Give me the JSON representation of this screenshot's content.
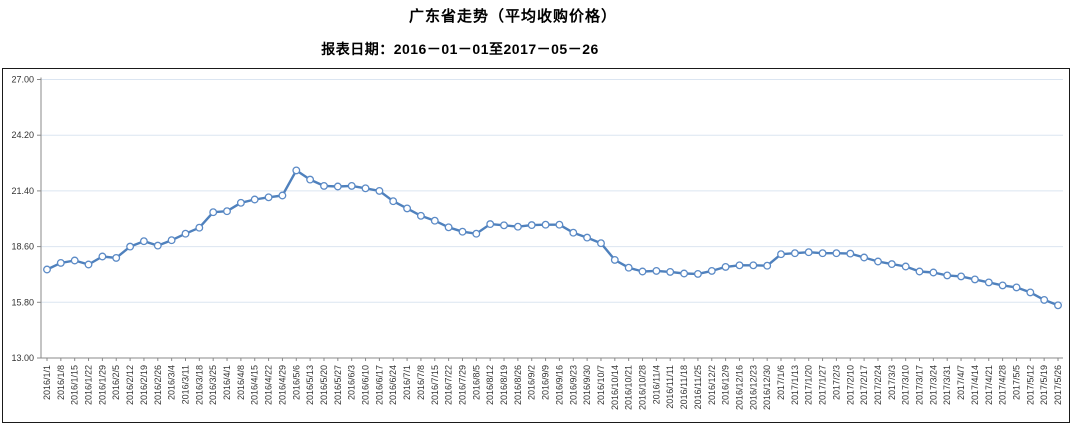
{
  "chart_data": {
    "type": "line",
    "title": "广东省走势（平均收购价格）",
    "subtitle": "报表日期：2016－01－01至2017－05－26",
    "legend": "none",
    "grid": "horizontal",
    "ylim": [
      13.0,
      27.0
    ],
    "yticks": [
      "13.00",
      "15.80",
      "18.60",
      "21.40",
      "24.20",
      "27.00"
    ],
    "xlabel": "",
    "ylabel": "",
    "categories": [
      "2016/1/1",
      "2016/1/8",
      "2016/1/15",
      "2016/1/22",
      "2016/1/29",
      "2016/2/5",
      "2016/2/12",
      "2016/2/19",
      "2016/2/26",
      "2016/3/4",
      "2016/3/11",
      "2016/3/18",
      "2016/3/25",
      "2016/4/1",
      "2016/4/8",
      "2016/4/15",
      "2016/4/22",
      "2016/4/29",
      "2016/5/6",
      "2016/5/13",
      "2016/5/20",
      "2016/5/27",
      "2016/6/3",
      "2016/6/10",
      "2016/6/17",
      "2016/6/24",
      "2016/7/1",
      "2016/7/8",
      "2016/7/15",
      "2016/7/22",
      "2016/7/29",
      "2016/8/5",
      "2016/8/12",
      "2016/8/19",
      "2016/8/26",
      "2016/9/2",
      "2016/9/9",
      "2016/9/16",
      "2016/9/23",
      "2016/9/30",
      "2016/10/7",
      "2016/10/14",
      "2016/10/21",
      "2016/10/28",
      "2016/11/4",
      "2016/11/11",
      "2016/11/18",
      "2016/11/25",
      "2016/12/2",
      "2016/12/9",
      "2016/12/16",
      "2016/12/23",
      "2016/12/30",
      "2017/1/6",
      "2017/1/13",
      "2017/1/20",
      "2017/1/27",
      "2017/2/3",
      "2017/2/10",
      "2017/2/17",
      "2017/2/24",
      "2017/3/3",
      "2017/3/10",
      "2017/3/17",
      "2017/3/24",
      "2017/3/31",
      "2017/4/7",
      "2017/4/14",
      "2017/4/21",
      "2017/4/28",
      "2017/5/5",
      "2017/5/12",
      "2017/5/19",
      "2017/5/26"
    ],
    "values": [
      17.45,
      17.78,
      17.9,
      17.7,
      18.1,
      18.03,
      18.6,
      18.87,
      18.65,
      18.92,
      19.25,
      19.55,
      20.33,
      20.38,
      20.8,
      20.97,
      21.08,
      21.17,
      22.43,
      21.97,
      21.65,
      21.62,
      21.65,
      21.53,
      21.4,
      20.88,
      20.52,
      20.15,
      19.9,
      19.57,
      19.35,
      19.25,
      19.73,
      19.67,
      19.6,
      19.68,
      19.7,
      19.7,
      19.3,
      19.05,
      18.77,
      17.93,
      17.54,
      17.35,
      17.38,
      17.33,
      17.25,
      17.23,
      17.38,
      17.58,
      17.66,
      17.66,
      17.64,
      18.22,
      18.27,
      18.32,
      18.27,
      18.27,
      18.25,
      18.05,
      17.85,
      17.72,
      17.6,
      17.35,
      17.3,
      17.15,
      17.1,
      16.95,
      16.8,
      16.65,
      16.55,
      16.3,
      15.92,
      15.65
    ],
    "colors": {
      "line": "#4f81bd",
      "marker_stroke": "#5b8ac6",
      "marker_fill": "#ffffff",
      "gridline": "#dbe5f1",
      "axis": "#898989",
      "frame": "#1a1a1a",
      "label_text": "#333333",
      "title_text": "#000000"
    }
  }
}
